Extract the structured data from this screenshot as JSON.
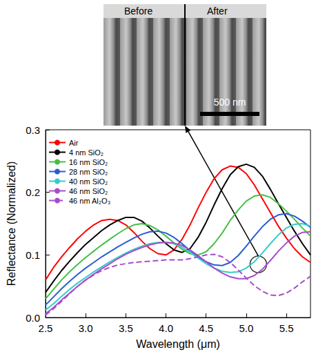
{
  "chart_data": {
    "type": "line",
    "x_label": "Wavelength (μm)",
    "y_label": "Reflectance (Normalized)",
    "xlim": [
      2.5,
      5.8
    ],
    "xticks": [
      2.5,
      {
        "value": 3.0,
        "label": "3.0"
      },
      3.5,
      {
        "value": 4.0,
        "label": "4.0"
      },
      4.5,
      {
        "value": 5.0,
        "label": "5.0"
      },
      5.5
    ],
    "ylim": [
      0.0,
      0.3
    ],
    "yticks": [
      {
        "value": 0.0,
        "label": "0.0"
      },
      0.1,
      0.2,
      0.3
    ],
    "grid": false,
    "legend": "upper left",
    "x": [
      2.5,
      2.6,
      2.7,
      2.8,
      2.9,
      3.0,
      3.1,
      3.2,
      3.3,
      3.4,
      3.5,
      3.6,
      3.7,
      3.8,
      3.9,
      4.0,
      4.1,
      4.2,
      4.3,
      4.4,
      4.5,
      4.6,
      4.7,
      4.8,
      4.9,
      5.0,
      5.1,
      5.2,
      5.3,
      5.4,
      5.5,
      5.6,
      5.7,
      5.8
    ],
    "series": [
      {
        "name": "Air",
        "color": "#ff0000",
        "line_style": "solid",
        "values": [
          0.06,
          0.08,
          0.097,
          0.112,
          0.126,
          0.138,
          0.148,
          0.155,
          0.157,
          0.155,
          0.148,
          0.136,
          0.122,
          0.11,
          0.102,
          0.1,
          0.108,
          0.125,
          0.148,
          0.175,
          0.2,
          0.222,
          0.236,
          0.242,
          0.24,
          0.23,
          0.212,
          0.19,
          0.168,
          0.146,
          0.127,
          0.11,
          0.097,
          0.088
        ]
      },
      {
        "name": "4 nm SiO₂",
        "color": "#000000",
        "line_style": "solid",
        "values": [
          0.04,
          0.058,
          0.075,
          0.09,
          0.104,
          0.117,
          0.128,
          0.139,
          0.148,
          0.155,
          0.16,
          0.16,
          0.154,
          0.143,
          0.13,
          0.118,
          0.108,
          0.104,
          0.11,
          0.128,
          0.152,
          0.18,
          0.206,
          0.228,
          0.241,
          0.245,
          0.24,
          0.226,
          0.205,
          0.182,
          0.16,
          0.138,
          0.118,
          0.1
        ]
      },
      {
        "name": "16 nm SiO₂",
        "color": "#44c044",
        "line_style": "solid",
        "values": [
          0.03,
          0.045,
          0.06,
          0.073,
          0.085,
          0.096,
          0.106,
          0.116,
          0.125,
          0.134,
          0.142,
          0.148,
          0.15,
          0.147,
          0.14,
          0.13,
          0.119,
          0.109,
          0.102,
          0.1,
          0.105,
          0.118,
          0.135,
          0.155,
          0.172,
          0.186,
          0.194,
          0.196,
          0.192,
          0.182,
          0.17,
          0.157,
          0.143,
          0.13
        ]
      },
      {
        "name": "28 nm SiO₂",
        "color": "#2a5bd7",
        "line_style": "solid",
        "values": [
          0.02,
          0.033,
          0.046,
          0.058,
          0.069,
          0.079,
          0.088,
          0.097,
          0.105,
          0.113,
          0.12,
          0.127,
          0.133,
          0.137,
          0.138,
          0.135,
          0.128,
          0.118,
          0.107,
          0.097,
          0.089,
          0.084,
          0.083,
          0.088,
          0.099,
          0.114,
          0.13,
          0.145,
          0.157,
          0.164,
          0.166,
          0.162,
          0.154,
          0.144
        ]
      },
      {
        "name": "40 nm SiO₂",
        "color": "#33cccc",
        "line_style": "solid",
        "values": [
          0.012,
          0.022,
          0.034,
          0.045,
          0.055,
          0.064,
          0.073,
          0.081,
          0.089,
          0.096,
          0.103,
          0.109,
          0.114,
          0.118,
          0.12,
          0.12,
          0.118,
          0.112,
          0.104,
          0.095,
          0.086,
          0.079,
          0.074,
          0.072,
          0.073,
          0.079,
          0.089,
          0.103,
          0.118,
          0.132,
          0.143,
          0.149,
          0.15,
          0.146
        ]
      },
      {
        "name": "46 nm SiO₂",
        "color": "#a64dc9",
        "line_style": "solid",
        "values": [
          0.006,
          0.016,
          0.028,
          0.039,
          0.05,
          0.06,
          0.069,
          0.078,
          0.086,
          0.094,
          0.101,
          0.107,
          0.112,
          0.116,
          0.119,
          0.12,
          0.119,
          0.115,
          0.108,
          0.099,
          0.089,
          0.079,
          0.071,
          0.065,
          0.062,
          0.062,
          0.067,
          0.077,
          0.091,
          0.106,
          0.119,
          0.13,
          0.136,
          0.137
        ]
      },
      {
        "name": "46 nm Al₂O₃",
        "color": "#a64dc9",
        "line_style": "dashed",
        "values": [
          0.004,
          0.014,
          0.026,
          0.038,
          0.05,
          0.06,
          0.068,
          0.075,
          0.08,
          0.084,
          0.086,
          0.088,
          0.089,
          0.09,
          0.091,
          0.092,
          0.092,
          0.092,
          0.094,
          0.097,
          0.1,
          0.101,
          0.097,
          0.088,
          0.076,
          0.063,
          0.051,
          0.042,
          0.036,
          0.035,
          0.039,
          0.047,
          0.057,
          0.066
        ]
      }
    ],
    "inset": {
      "labels": [
        "Before",
        "After"
      ],
      "scale_bar": "500 nm",
      "points_to": {
        "x": 5.15,
        "y": 0.085
      }
    }
  }
}
